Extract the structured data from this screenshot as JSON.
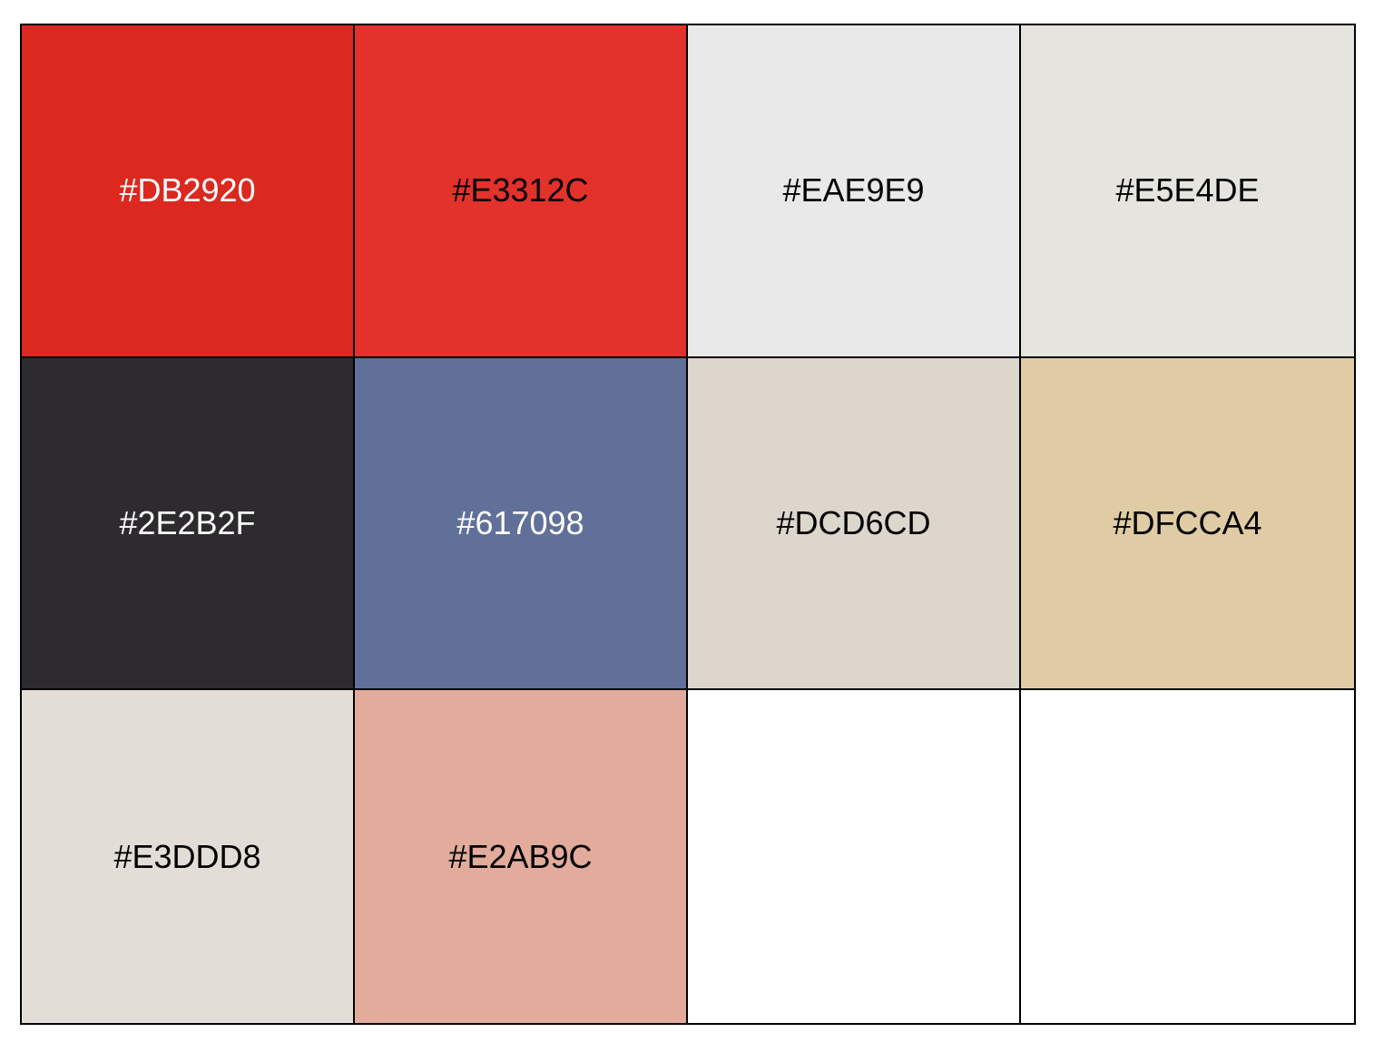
{
  "swatches": [
    {
      "label": "#DB2920",
      "fill": "#DB2920",
      "text_color": "#FFFFFF"
    },
    {
      "label": "#E3312C",
      "fill": "#E3312C",
      "text_color": "#000000"
    },
    {
      "label": "#EAE9E9",
      "fill": "#EAE9E9",
      "text_color": "#000000"
    },
    {
      "label": "#E5E4DE",
      "fill": "#E5E4DE",
      "text_color": "#000000"
    },
    {
      "label": "#2E2B2F",
      "fill": "#2E2B2F",
      "text_color": "#FFFFFF"
    },
    {
      "label": "#617098",
      "fill": "#617098",
      "text_color": "#FFFFFF"
    },
    {
      "label": "#DCD6CD",
      "fill": "#DCD6CD",
      "text_color": "#000000"
    },
    {
      "label": "#DFCCA4",
      "fill": "#DFCCA4",
      "text_color": "#000000"
    },
    {
      "label": "#E3DDD8",
      "fill": "#E3DDD8",
      "text_color": "#000000"
    },
    {
      "label": "#E2AB9C",
      "fill": "#E2AB9C",
      "text_color": "#000000"
    },
    {
      "label": "",
      "fill": "#FFFFFF",
      "text_color": "#000000"
    },
    {
      "label": "",
      "fill": "#FFFFFF",
      "text_color": "#000000"
    }
  ]
}
